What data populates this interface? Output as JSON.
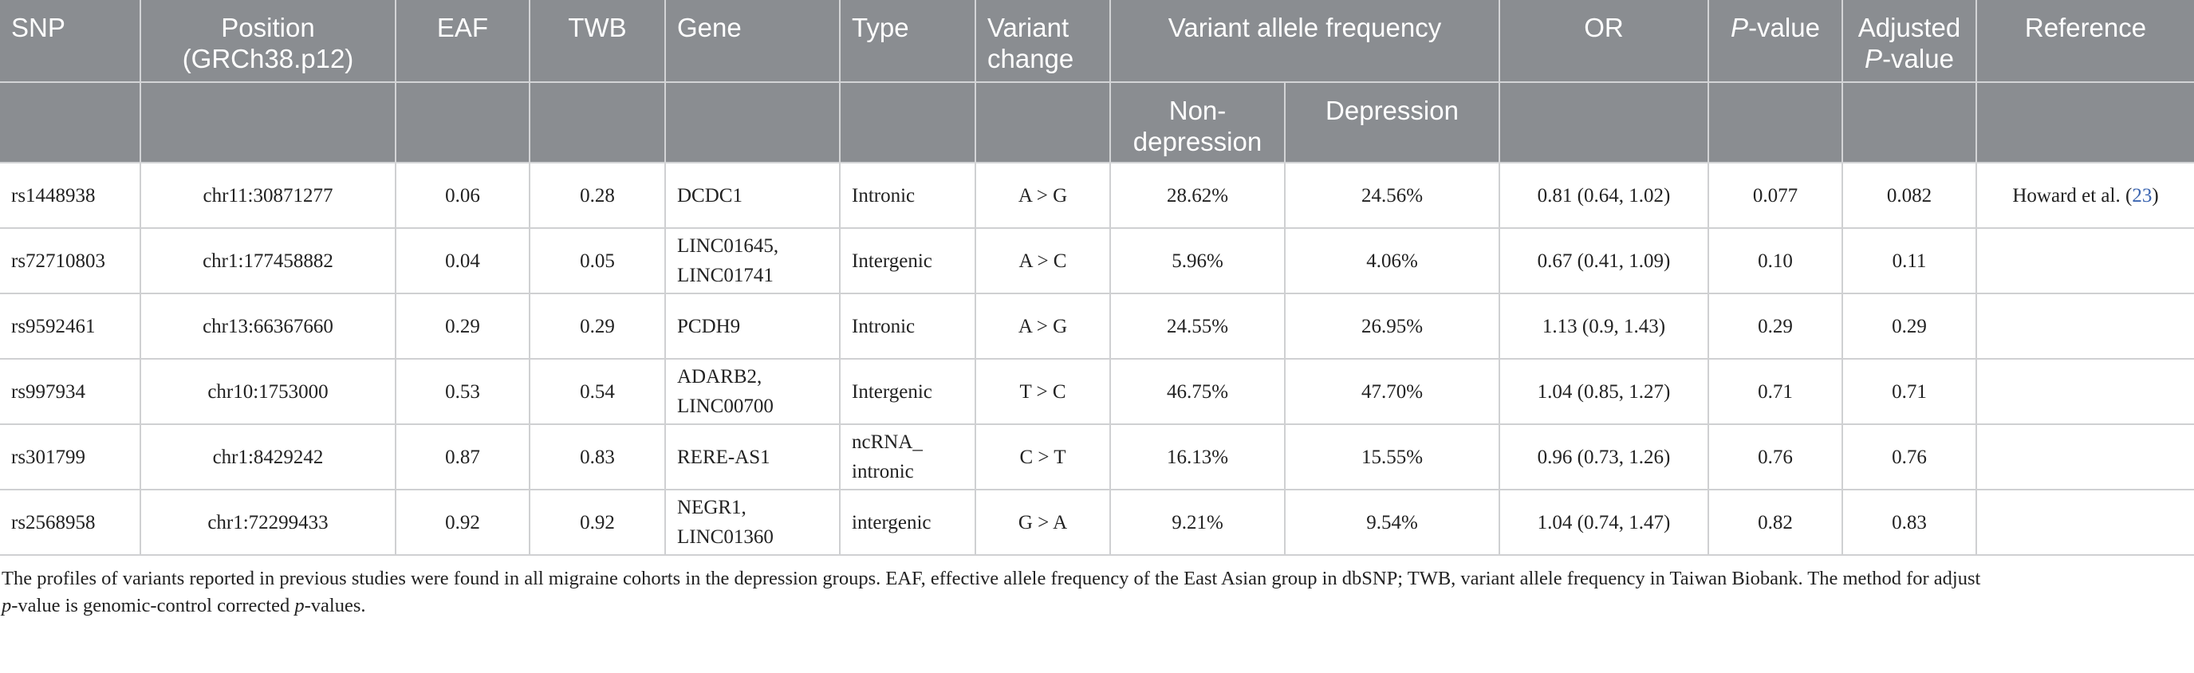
{
  "table": {
    "headers": {
      "snp": "SNP",
      "position_l1": "Position",
      "position_l2": "(GRCh38.p12)",
      "eaf": "EAF",
      "twb": "TWB",
      "gene": "Gene",
      "type": "Type",
      "variant_change_l1": "Variant",
      "variant_change_l2": "change",
      "vaf": "Variant allele frequency",
      "vaf_non_l1": "Non-",
      "vaf_non_l2": "depression",
      "vaf_dep": "Depression",
      "or": "OR",
      "pvalue_p": "P",
      "pvalue_rest": "-value",
      "adj_l1": "Adjusted",
      "adj_p": "P",
      "adj_rest": "-value",
      "reference": "Reference"
    },
    "rows": [
      {
        "snp": "rs1448938",
        "position": "chr11:30871277",
        "eaf": "0.06",
        "twb": "0.28",
        "gene_l1": "DCDC1",
        "gene_l2": "",
        "type_l1": "Intronic",
        "type_l2": "",
        "change": "A > G",
        "non_dep": "28.62%",
        "dep": "24.56%",
        "or": "0.81 (0.64, 1.02)",
        "p": "0.077",
        "adj_p": "0.082",
        "ref_text": "Howard et al. (",
        "ref_num": "23",
        "ref_close": ")"
      },
      {
        "snp": "rs72710803",
        "position": "chr1:177458882",
        "eaf": "0.04",
        "twb": "0.05",
        "gene_l1": "LINC01645,",
        "gene_l2": "LINC01741",
        "type_l1": "Intergenic",
        "type_l2": "",
        "change": "A > C",
        "non_dep": "5.96%",
        "dep": "4.06%",
        "or": "0.67 (0.41, 1.09)",
        "p": "0.10",
        "adj_p": "0.11",
        "ref_text": "",
        "ref_num": "",
        "ref_close": ""
      },
      {
        "snp": "rs9592461",
        "position": "chr13:66367660",
        "eaf": "0.29",
        "twb": "0.29",
        "gene_l1": "PCDH9",
        "gene_l2": "",
        "type_l1": "Intronic",
        "type_l2": "",
        "change": "A > G",
        "non_dep": "24.55%",
        "dep": "26.95%",
        "or": "1.13 (0.9, 1.43)",
        "p": "0.29",
        "adj_p": "0.29",
        "ref_text": "",
        "ref_num": "",
        "ref_close": ""
      },
      {
        "snp": "rs997934",
        "position": "chr10:1753000",
        "eaf": "0.53",
        "twb": "0.54",
        "gene_l1": "ADARB2,",
        "gene_l2": "LINC00700",
        "type_l1": "Intergenic",
        "type_l2": "",
        "change": "T > C",
        "non_dep": "46.75%",
        "dep": "47.70%",
        "or": "1.04 (0.85, 1.27)",
        "p": "0.71",
        "adj_p": "0.71",
        "ref_text": "",
        "ref_num": "",
        "ref_close": ""
      },
      {
        "snp": "rs301799",
        "position": "chr1:8429242",
        "eaf": "0.87",
        "twb": "0.83",
        "gene_l1": "RERE-AS1",
        "gene_l2": "",
        "type_l1": "ncRNA_",
        "type_l2": "intronic",
        "change": "C > T",
        "non_dep": "16.13%",
        "dep": "15.55%",
        "or": "0.96 (0.73, 1.26)",
        "p": "0.76",
        "adj_p": "0.76",
        "ref_text": "",
        "ref_num": "",
        "ref_close": ""
      },
      {
        "snp": "rs2568958",
        "position": "chr1:72299433",
        "eaf": "0.92",
        "twb": "0.92",
        "gene_l1": "NEGR1,",
        "gene_l2": "LINC01360",
        "type_l1": "intergenic",
        "type_l2": "",
        "change": "G > A",
        "non_dep": "9.21%",
        "dep": "9.54%",
        "or": "1.04 (0.74, 1.47)",
        "p": "0.82",
        "adj_p": "0.83",
        "ref_text": "",
        "ref_num": "",
        "ref_close": ""
      }
    ]
  },
  "footnote": {
    "line1": "The profiles of variants reported in previous studies were found in all migraine cohorts in the depression groups. EAF, effective allele frequency of the East Asian group in dbSNP; TWB, variant allele frequency in Taiwan Biobank. The method for adjust",
    "line2_p1": "p",
    "line2_mid": "-value is genomic-control corrected ",
    "line2_p2": "p",
    "line2_end": "-values."
  },
  "colors": {
    "header_bg": "#8a8d91",
    "header_text": "#ffffff",
    "grid": "#cfd0d2",
    "link": "#3a64b0"
  }
}
